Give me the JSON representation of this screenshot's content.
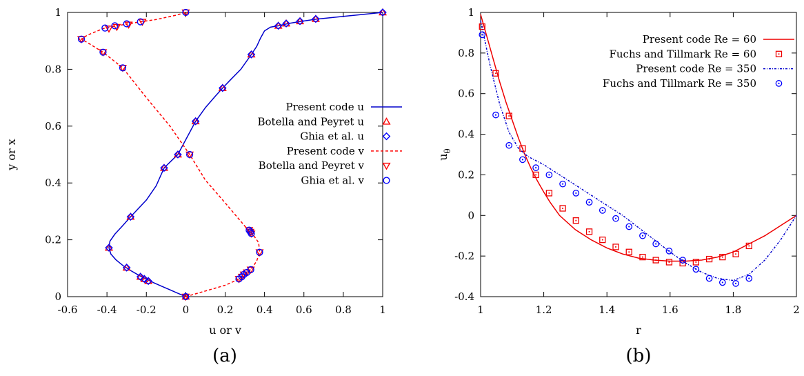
{
  "chart_data": [
    {
      "type": "line",
      "panel_label": "(a)",
      "xlabel": "u or v",
      "ylabel": "y or x",
      "xlim": [
        -0.6,
        1
      ],
      "ylim": [
        0,
        1
      ],
      "xticks": [
        "-0.6",
        "-0.4",
        "-0.2",
        "0",
        "0.2",
        "0.4",
        "0.6",
        "0.8",
        "1"
      ],
      "yticks": [
        "0",
        "0.2",
        "0.4",
        "0.6",
        "0.8",
        "1"
      ],
      "legend_position": "center-right",
      "grid": false,
      "series": [
        {
          "name": "Present code u",
          "kind": "line",
          "color": "#0000cc",
          "dash": "solid",
          "points": [
            [
              0,
              0
            ],
            [
              -0.04,
              0.012
            ],
            [
              -0.08,
              0.024
            ],
            [
              -0.12,
              0.036
            ],
            [
              -0.16,
              0.048
            ],
            [
              -0.2,
              0.062
            ],
            [
              -0.24,
              0.076
            ],
            [
              -0.28,
              0.092
            ],
            [
              -0.32,
              0.11
            ],
            [
              -0.355,
              0.13
            ],
            [
              -0.38,
              0.15
            ],
            [
              -0.39,
              0.172
            ],
            [
              -0.385,
              0.195
            ],
            [
              -0.36,
              0.22
            ],
            [
              -0.32,
              0.25
            ],
            [
              -0.28,
              0.281
            ],
            [
              -0.2,
              0.34
            ],
            [
              -0.15,
              0.39
            ],
            [
              -0.11,
              0.453
            ],
            [
              -0.07,
              0.48
            ],
            [
              -0.04,
              0.5
            ],
            [
              0.05,
              0.617
            ],
            [
              0.1,
              0.665
            ],
            [
              0.15,
              0.705
            ],
            [
              0.187,
              0.734
            ],
            [
              0.23,
              0.765
            ],
            [
              0.28,
              0.8
            ],
            [
              0.333,
              0.852
            ],
            [
              0.36,
              0.88
            ],
            [
              0.38,
              0.91
            ],
            [
              0.4,
              0.935
            ],
            [
              0.43,
              0.948
            ],
            [
              0.47,
              0.953
            ],
            [
              0.52,
              0.961
            ],
            [
              0.58,
              0.968
            ],
            [
              0.66,
              0.976
            ],
            [
              0.8,
              0.986
            ],
            [
              1,
              1
            ]
          ]
        },
        {
          "name": "Botella and Peyret u",
          "kind": "markers",
          "marker": "triangle-up",
          "color": "#ff0000",
          "points": [
            [
              0,
              0
            ],
            [
              -0.19,
              0.055
            ],
            [
              -0.21,
              0.062
            ],
            [
              -0.23,
              0.07
            ],
            [
              -0.3,
              0.102
            ],
            [
              -0.39,
              0.172
            ],
            [
              -0.28,
              0.281
            ],
            [
              -0.11,
              0.453
            ],
            [
              -0.04,
              0.5
            ],
            [
              0.05,
              0.617
            ],
            [
              0.187,
              0.734
            ],
            [
              0.333,
              0.852
            ],
            [
              0.47,
              0.953
            ],
            [
              0.51,
              0.961
            ],
            [
              0.58,
              0.969
            ],
            [
              0.66,
              0.977
            ],
            [
              1,
              1
            ]
          ]
        },
        {
          "name": "Ghia et al. u",
          "kind": "markers",
          "marker": "diamond",
          "color": "#0000ff",
          "points": [
            [
              0,
              0
            ],
            [
              -0.19,
              0.055
            ],
            [
              -0.21,
              0.062
            ],
            [
              -0.23,
              0.07
            ],
            [
              -0.3,
              0.102
            ],
            [
              -0.39,
              0.172
            ],
            [
              -0.28,
              0.281
            ],
            [
              -0.11,
              0.453
            ],
            [
              -0.04,
              0.5
            ],
            [
              0.05,
              0.617
            ],
            [
              0.187,
              0.734
            ],
            [
              0.333,
              0.852
            ],
            [
              0.47,
              0.953
            ],
            [
              0.51,
              0.961
            ],
            [
              0.58,
              0.969
            ],
            [
              0.66,
              0.977
            ],
            [
              1,
              1
            ]
          ]
        },
        {
          "name": "Present code v",
          "kind": "line",
          "color": "#ff0000",
          "dash": "dashed",
          "points": [
            [
              0,
              0
            ],
            [
              0.1,
              0.02
            ],
            [
              0.2,
              0.04
            ],
            [
              0.27,
              0.062
            ],
            [
              0.3,
              0.078
            ],
            [
              0.33,
              0.095
            ],
            [
              0.36,
              0.125
            ],
            [
              0.375,
              0.156
            ],
            [
              0.37,
              0.19
            ],
            [
              0.345,
              0.215
            ],
            [
              0.31,
              0.24
            ],
            [
              0.2,
              0.33
            ],
            [
              0.1,
              0.41
            ],
            [
              0.02,
              0.5
            ],
            [
              -0.08,
              0.6
            ],
            [
              -0.2,
              0.7
            ],
            [
              -0.32,
              0.805
            ],
            [
              -0.42,
              0.86
            ],
            [
              -0.49,
              0.89
            ],
            [
              -0.53,
              0.906
            ],
            [
              -0.5,
              0.92
            ],
            [
              -0.42,
              0.943
            ],
            [
              -0.35,
              0.953
            ],
            [
              -0.29,
              0.96
            ],
            [
              -0.23,
              0.967
            ],
            [
              -0.15,
              0.975
            ],
            [
              -0.05,
              0.99
            ],
            [
              0,
              1
            ]
          ]
        },
        {
          "name": "Botella and Peyret v",
          "kind": "markers",
          "marker": "triangle-down",
          "color": "#ff0000",
          "points": [
            [
              0,
              0
            ],
            [
              0.27,
              0.062
            ],
            [
              0.285,
              0.07
            ],
            [
              0.295,
              0.078
            ],
            [
              0.31,
              0.085
            ],
            [
              0.33,
              0.095
            ],
            [
              0.375,
              0.156
            ],
            [
              0.333,
              0.222
            ],
            [
              0.328,
              0.228
            ],
            [
              0.322,
              0.234
            ],
            [
              0.02,
              0.5
            ],
            [
              -0.32,
              0.805
            ],
            [
              -0.42,
              0.86
            ],
            [
              -0.53,
              0.906
            ],
            [
              -0.39,
              0.943
            ],
            [
              -0.35,
              0.949
            ],
            [
              -0.29,
              0.957
            ],
            [
              -0.22,
              0.967
            ],
            [
              0,
              1
            ]
          ]
        },
        {
          "name": "Ghia et al. v",
          "kind": "markers",
          "marker": "circle",
          "color": "#0000ff",
          "points": [
            [
              0,
              0
            ],
            [
              0.27,
              0.062
            ],
            [
              0.285,
              0.07
            ],
            [
              0.295,
              0.078
            ],
            [
              0.31,
              0.085
            ],
            [
              0.33,
              0.095
            ],
            [
              0.375,
              0.156
            ],
            [
              0.333,
              0.222
            ],
            [
              0.328,
              0.228
            ],
            [
              0.322,
              0.234
            ],
            [
              0.02,
              0.5
            ],
            [
              -0.32,
              0.805
            ],
            [
              -0.42,
              0.86
            ],
            [
              -0.53,
              0.906
            ],
            [
              -0.41,
              0.945
            ],
            [
              -0.36,
              0.953
            ],
            [
              -0.3,
              0.96
            ],
            [
              -0.23,
              0.967
            ],
            [
              0,
              1
            ]
          ]
        }
      ]
    },
    {
      "type": "line",
      "panel_label": "(b)",
      "xlabel": "r",
      "ylabel": "u",
      "ylabel_sub": "θ",
      "xlim": [
        1,
        2
      ],
      "ylim": [
        -0.4,
        1
      ],
      "xticks": [
        "1",
        "1.2",
        "1.4",
        "1.6",
        "1.8",
        "2"
      ],
      "yticks": [
        "-0.4",
        "-0.2",
        "0",
        "0.2",
        "0.4",
        "0.6",
        "0.8",
        "1"
      ],
      "legend_position": "top-right",
      "grid": false,
      "series": [
        {
          "name": "Present code Re = 60",
          "kind": "line",
          "color": "#ee0000",
          "dash": "solid",
          "points": [
            [
              1,
              0.99
            ],
            [
              1.02,
              0.88
            ],
            [
              1.04,
              0.77
            ],
            [
              1.06,
              0.66
            ],
            [
              1.08,
              0.56
            ],
            [
              1.1,
              0.47
            ],
            [
              1.12,
              0.38
            ],
            [
              1.14,
              0.3
            ],
            [
              1.16,
              0.23
            ],
            [
              1.18,
              0.17
            ],
            [
              1.2,
              0.115
            ],
            [
              1.22,
              0.065
            ],
            [
              1.25,
              0
            ],
            [
              1.3,
              -0.07
            ],
            [
              1.35,
              -0.12
            ],
            [
              1.4,
              -0.16
            ],
            [
              1.45,
              -0.19
            ],
            [
              1.5,
              -0.21
            ],
            [
              1.55,
              -0.22
            ],
            [
              1.6,
              -0.225
            ],
            [
              1.65,
              -0.225
            ],
            [
              1.7,
              -0.22
            ],
            [
              1.75,
              -0.205
            ],
            [
              1.8,
              -0.18
            ],
            [
              1.85,
              -0.14
            ],
            [
              1.9,
              -0.1
            ],
            [
              1.95,
              -0.05
            ],
            [
              2,
              0
            ]
          ]
        },
        {
          "name": "Fuchs and Tillmark Re = 60",
          "kind": "markers",
          "marker": "square",
          "color": "#ee0000",
          "points": [
            [
              1.005,
              0.93
            ],
            [
              1.048,
              0.7
            ],
            [
              1.09,
              0.49
            ],
            [
              1.133,
              0.33
            ],
            [
              1.175,
              0.2
            ],
            [
              1.217,
              0.11
            ],
            [
              1.26,
              0.035
            ],
            [
              1.302,
              -0.025
            ],
            [
              1.344,
              -0.08
            ],
            [
              1.386,
              -0.12
            ],
            [
              1.428,
              -0.155
            ],
            [
              1.47,
              -0.18
            ],
            [
              1.513,
              -0.205
            ],
            [
              1.555,
              -0.22
            ],
            [
              1.597,
              -0.23
            ],
            [
              1.64,
              -0.235
            ],
            [
              1.682,
              -0.23
            ],
            [
              1.724,
              -0.215
            ],
            [
              1.766,
              -0.205
            ],
            [
              1.808,
              -0.19
            ],
            [
              1.85,
              -0.15
            ]
          ]
        },
        {
          "name": "Present code Re = 350",
          "kind": "line",
          "color": "#0000cc",
          "dash": "dashdot",
          "points": [
            [
              1,
              0.96
            ],
            [
              1.03,
              0.74
            ],
            [
              1.06,
              0.55
            ],
            [
              1.09,
              0.41
            ],
            [
              1.12,
              0.33
            ],
            [
              1.15,
              0.29
            ],
            [
              1.2,
              0.25
            ],
            [
              1.25,
              0.2
            ],
            [
              1.3,
              0.15
            ],
            [
              1.35,
              0.1
            ],
            [
              1.4,
              0.05
            ],
            [
              1.45,
              0
            ],
            [
              1.5,
              -0.06
            ],
            [
              1.55,
              -0.12
            ],
            [
              1.6,
              -0.18
            ],
            [
              1.65,
              -0.235
            ],
            [
              1.7,
              -0.28
            ],
            [
              1.75,
              -0.31
            ],
            [
              1.8,
              -0.32
            ],
            [
              1.85,
              -0.29
            ],
            [
              1.9,
              -0.22
            ],
            [
              1.95,
              -0.12
            ],
            [
              2,
              0
            ]
          ]
        },
        {
          "name": "Fuchs and Tillmark Re = 350",
          "kind": "markers",
          "marker": "circle-dot",
          "color": "#0000ff",
          "points": [
            [
              1.005,
              0.89
            ],
            [
              1.048,
              0.495
            ],
            [
              1.09,
              0.345
            ],
            [
              1.133,
              0.275
            ],
            [
              1.175,
              0.235
            ],
            [
              1.217,
              0.2
            ],
            [
              1.26,
              0.155
            ],
            [
              1.302,
              0.11
            ],
            [
              1.344,
              0.065
            ],
            [
              1.386,
              0.025
            ],
            [
              1.428,
              -0.015
            ],
            [
              1.47,
              -0.055
            ],
            [
              1.513,
              -0.1
            ],
            [
              1.555,
              -0.14
            ],
            [
              1.597,
              -0.175
            ],
            [
              1.64,
              -0.22
            ],
            [
              1.682,
              -0.265
            ],
            [
              1.724,
              -0.31
            ],
            [
              1.766,
              -0.33
            ],
            [
              1.808,
              -0.335
            ],
            [
              1.85,
              -0.31
            ]
          ]
        }
      ]
    }
  ]
}
